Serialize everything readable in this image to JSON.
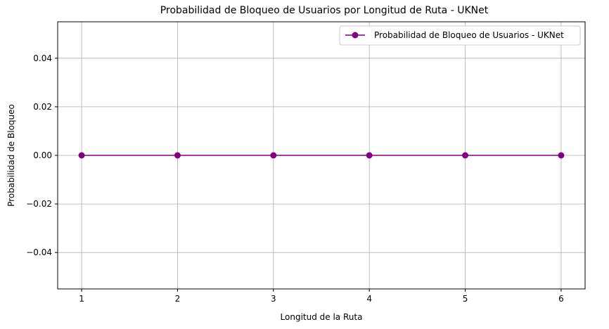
{
  "chart_data": {
    "type": "line",
    "title": "Probabilidad de Bloqueo de Usuarios por Longitud de Ruta - UKNet",
    "xlabel": "Longitud de la Ruta",
    "ylabel": "Probabilidad de Bloqueo",
    "x": [
      1,
      2,
      3,
      4,
      5,
      6
    ],
    "series": [
      {
        "name": "Probabilidad de Bloqueo de Usuarios - UKNet",
        "values": [
          0,
          0,
          0,
          0,
          0,
          0
        ],
        "color": "#800080",
        "marker": "circle"
      }
    ],
    "xlim": [
      0.75,
      6.25
    ],
    "ylim": [
      -0.055,
      0.055
    ],
    "xticks": [
      1,
      2,
      3,
      4,
      5,
      6
    ],
    "xtick_labels": [
      "1",
      "2",
      "3",
      "4",
      "5",
      "6"
    ],
    "yticks": [
      -0.04,
      -0.02,
      0.0,
      0.02,
      0.04
    ],
    "ytick_labels": [
      "−0.04",
      "−0.02",
      "0.00",
      "0.02",
      "0.04"
    ],
    "grid": true,
    "legend_position": "upper-right"
  }
}
